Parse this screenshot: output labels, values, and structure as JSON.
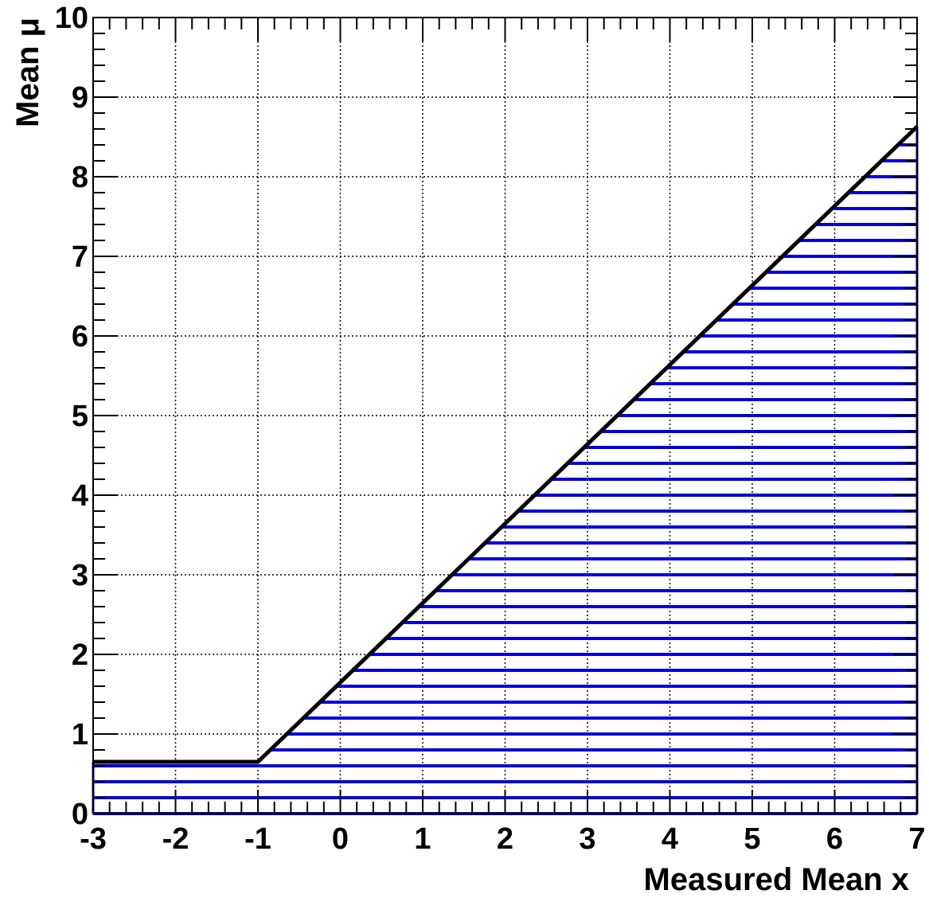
{
  "chart_data": {
    "type": "area",
    "title": "",
    "xlabel": "Measured Mean x",
    "ylabel": "Mean μ",
    "xlim": [
      -3,
      7
    ],
    "ylim": [
      0,
      10
    ],
    "xticks": [
      "-3",
      "-2",
      "-1",
      "0",
      "1",
      "2",
      "3",
      "4",
      "5",
      "6",
      "7"
    ],
    "yticks": [
      "0",
      "1",
      "2",
      "3",
      "4",
      "5",
      "6",
      "7",
      "8",
      "9",
      "10"
    ],
    "grid": true,
    "fill_pattern": "horizontal-hatch",
    "series": [
      {
        "x": [
          -3,
          -1,
          7
        ],
        "y": [
          0.65,
          0.65,
          8.63
        ]
      }
    ],
    "colors": {
      "boundary": "#000000",
      "hatch": "#0000dd",
      "grid": "#000000"
    }
  }
}
